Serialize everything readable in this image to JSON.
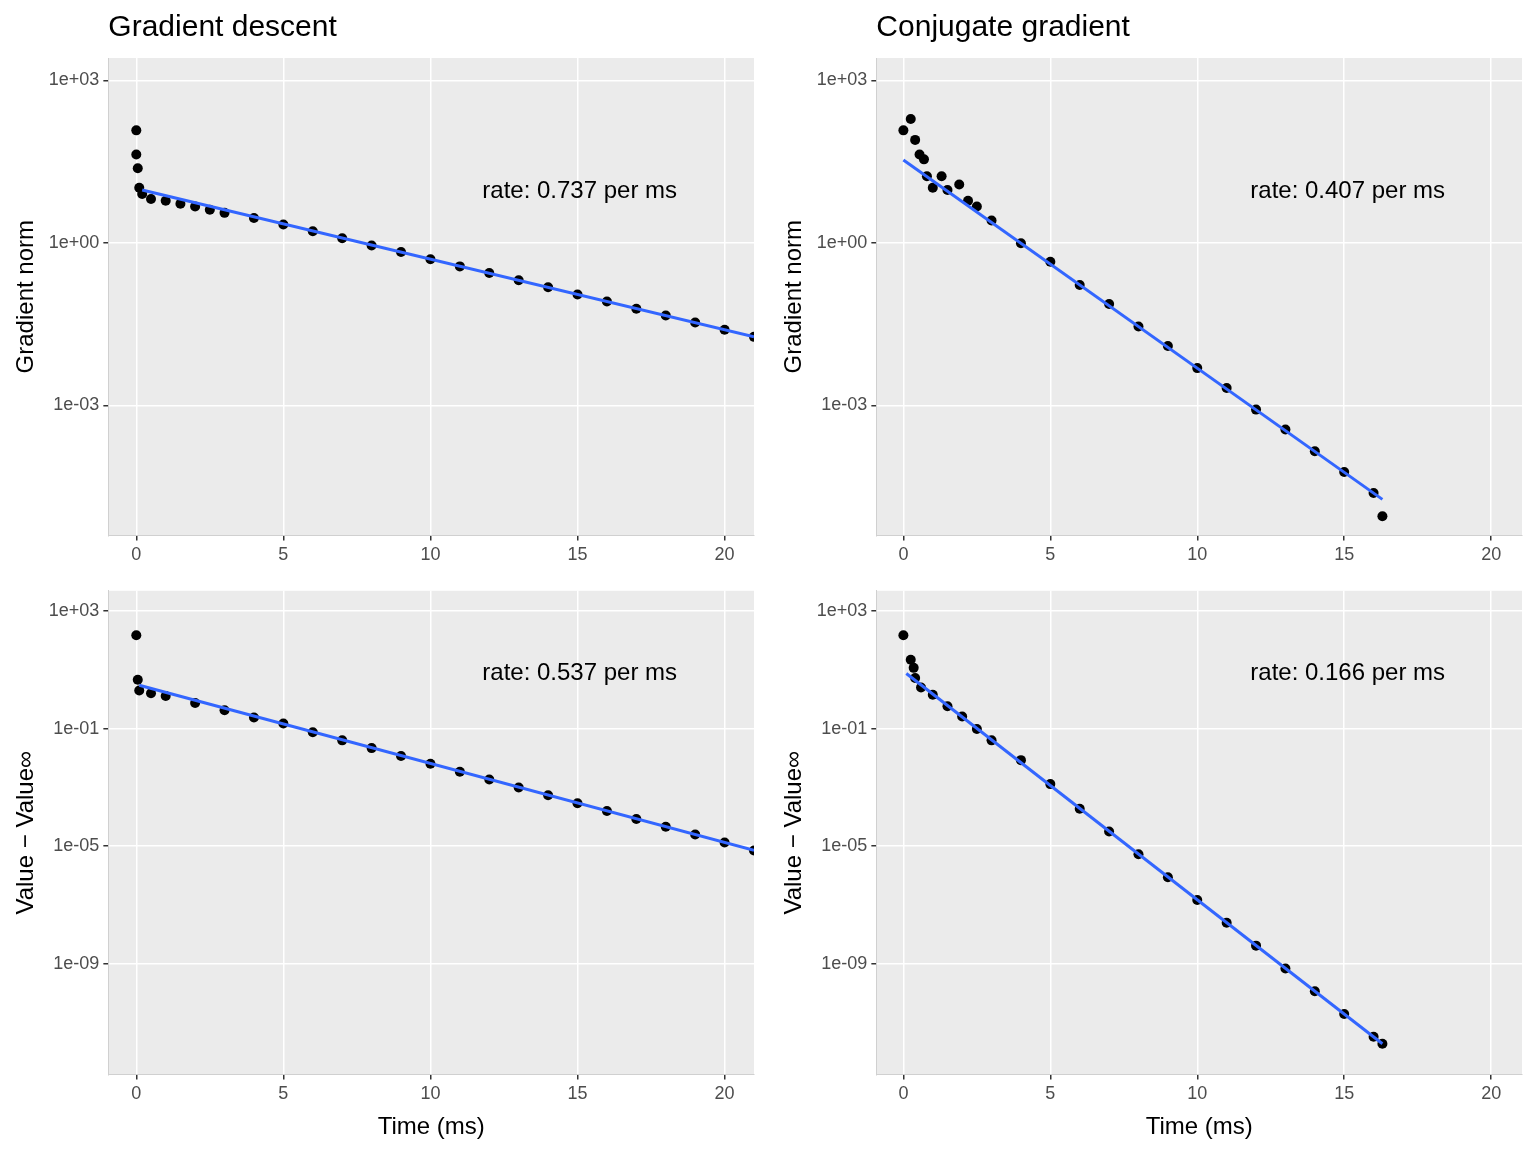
{
  "chart_data": [
    {
      "type": "scatter",
      "title": "Gradient descent",
      "ylabel": "Gradient norm",
      "annotation": "rate: 0.737 per ms",
      "log": "y",
      "grid": true,
      "xlim": [
        -0.95,
        21
      ],
      "xticks": [
        0,
        5,
        10,
        15,
        20
      ],
      "ylim": [
        4e-06,
        2600
      ],
      "yticks": [
        {
          "value": 1000,
          "label": "1e+03"
        },
        {
          "value": 1,
          "label": "1e+00"
        },
        {
          "value": 0.001,
          "label": "1e-03"
        }
      ],
      "series": [
        {
          "type": "scatter",
          "color": "#000000",
          "marker": "circle",
          "x": [
            0,
            0,
            0.05,
            0.1,
            0.2,
            0.5,
            1,
            1.5,
            2,
            2.5,
            3,
            4,
            5,
            6,
            7,
            8,
            9,
            10,
            11,
            12,
            13,
            14,
            15,
            16,
            17,
            18,
            19,
            20,
            21
          ],
          "values": [
            120,
            43,
            24,
            10.5,
            8.0,
            6.5,
            6.0,
            5.3,
            4.7,
            4.1,
            3.6,
            2.9,
            2.2,
            1.65,
            1.22,
            0.9,
            0.68,
            0.5,
            0.37,
            0.28,
            0.205,
            0.152,
            0.112,
            0.083,
            0.061,
            0.046,
            0.034,
            0.025,
            0.0185
          ]
        },
        {
          "type": "line",
          "color": "#3366ff",
          "line_style": "solid",
          "x": [
            0.2,
            21
          ],
          "values": [
            9.5,
            0.0186
          ]
        }
      ]
    },
    {
      "type": "scatter",
      "title": "Conjugate gradient",
      "ylabel": "Gradient norm",
      "annotation": "rate: 0.407 per ms",
      "log": "y",
      "grid": true,
      "xlim": [
        -0.92,
        21.05
      ],
      "xticks": [
        0,
        5,
        10,
        15,
        20
      ],
      "ylim": [
        4e-06,
        2600
      ],
      "yticks": [
        {
          "value": 1000,
          "label": "1e+03"
        },
        {
          "value": 1,
          "label": "1e+00"
        },
        {
          "value": 0.001,
          "label": "1e-03"
        }
      ],
      "series": [
        {
          "type": "scatter",
          "color": "#000000",
          "marker": "circle",
          "x": [
            0,
            0.25,
            0.4,
            0.55,
            0.7,
            0.8,
            1,
            1.3,
            1.5,
            1.9,
            2.2,
            2.5,
            3,
            4,
            5,
            6,
            7,
            8,
            9,
            10,
            11,
            12,
            13,
            14,
            15,
            16,
            16.3
          ],
          "values": [
            120,
            195,
            80,
            43,
            35,
            17,
            10.5,
            17,
            9.5,
            12,
            6,
            4.7,
            2.6,
            0.99,
            0.45,
            0.168,
            0.075,
            0.0287,
            0.0125,
            0.0049,
            0.0021,
            0.00084,
            0.00036,
            0.000143,
            5.9e-05,
            2.43e-05,
            9e-06
          ]
        },
        {
          "type": "line",
          "color": "#3366ff",
          "line_style": "solid",
          "x": [
            0,
            16.3
          ],
          "values": [
            34,
            1.85e-05
          ]
        }
      ]
    },
    {
      "type": "scatter",
      "xlabel": "Time (ms)",
      "ylabel": "Value − Value∞",
      "annotation": "rate: 0.537 per ms",
      "log": "y",
      "grid": true,
      "xlim": [
        -0.95,
        21
      ],
      "xticks": [
        0,
        5,
        10,
        15,
        20
      ],
      "ylim": [
        1.7e-13,
        4900
      ],
      "yticks": [
        {
          "value": 1000,
          "label": "1e+03"
        },
        {
          "value": 0.1,
          "label": "1e-01"
        },
        {
          "value": 1e-05,
          "label": "1e-05"
        },
        {
          "value": 1e-09,
          "label": "1e-09"
        }
      ],
      "series": [
        {
          "type": "scatter",
          "color": "#000000",
          "marker": "circle",
          "x": [
            0,
            0.05,
            0.1,
            0.5,
            1,
            2,
            3,
            4,
            5,
            6,
            7,
            8,
            9,
            10,
            11,
            12,
            13,
            14,
            15,
            16,
            17,
            18,
            19,
            20,
            21
          ],
          "values": [
            150,
            4.6,
            2.0,
            1.6,
            1.3,
            0.75,
            0.42,
            0.24,
            0.15,
            0.075,
            0.04,
            0.0218,
            0.0118,
            0.0064,
            0.0034,
            0.00186,
            0.001,
            0.00054,
            0.00029,
            0.000158,
            8.5e-05,
            4.6e-05,
            2.5e-05,
            1.34e-05,
            7.2e-06
          ]
        },
        {
          "type": "line",
          "color": "#3366ff",
          "line_style": "solid",
          "x": [
            0.1,
            21
          ],
          "values": [
            3.0,
            7.2e-06
          ]
        }
      ]
    },
    {
      "type": "scatter",
      "xlabel": "Time (ms)",
      "ylabel": "Value − Value∞",
      "annotation": "rate: 0.166 per ms",
      "log": "y",
      "grid": true,
      "xlim": [
        -0.92,
        21.05
      ],
      "xticks": [
        0,
        5,
        10,
        15,
        20
      ],
      "ylim": [
        1.7e-13,
        4900
      ],
      "yticks": [
        {
          "value": 1000,
          "label": "1e+03"
        },
        {
          "value": 0.1,
          "label": "1e-01"
        },
        {
          "value": 1e-05,
          "label": "1e-05"
        },
        {
          "value": 1e-09,
          "label": "1e-09"
        }
      ],
      "series": [
        {
          "type": "scatter",
          "color": "#000000",
          "marker": "circle",
          "x": [
            0,
            0.25,
            0.35,
            0.4,
            0.6,
            1,
            1.5,
            2,
            2.5,
            3,
            4,
            5,
            6,
            7,
            8,
            9,
            10,
            11,
            12,
            13,
            14,
            15,
            16,
            16.3
          ],
          "values": [
            150,
            22,
            11.7,
            5.3,
            2.5,
            1.43,
            0.58,
            0.26,
            0.098,
            0.04,
            0.0085,
            0.0013,
            0.000188,
            3.15e-05,
            5.3e-06,
            8.8e-07,
            1.48e-07,
            2.5e-08,
            4.15e-09,
            6.9e-10,
            1.16e-10,
            1.95e-11,
            3.3e-12,
            1.9e-12
          ]
        },
        {
          "type": "line",
          "color": "#3366ff",
          "line_style": "solid",
          "x": [
            0.1,
            16.3
          ],
          "values": [
            7.5,
            1.9e-12
          ]
        }
      ]
    }
  ]
}
